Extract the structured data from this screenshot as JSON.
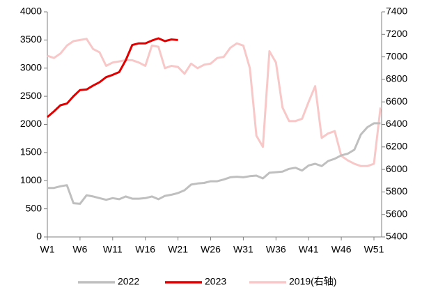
{
  "chart_data": {
    "type": "line",
    "categories": [
      "W1",
      null,
      null,
      null,
      null,
      "W6",
      null,
      null,
      null,
      null,
      "W11",
      null,
      null,
      null,
      null,
      "W16",
      null,
      null,
      null,
      null,
      "W21",
      null,
      null,
      null,
      null,
      "W26",
      null,
      null,
      null,
      null,
      "W31",
      null,
      null,
      null,
      null,
      "W36",
      null,
      null,
      null,
      null,
      "W41",
      null,
      null,
      null,
      null,
      "W46",
      null,
      null,
      null,
      null,
      "W51",
      null
    ],
    "series": [
      {
        "name": "2022",
        "color": "#bfbfbf",
        "values": [
          870,
          870,
          900,
          920,
          600,
          590,
          740,
          720,
          690,
          660,
          690,
          670,
          720,
          680,
          680,
          690,
          720,
          670,
          730,
          750,
          780,
          830,
          930,
          950,
          960,
          990,
          990,
          1020,
          1060,
          1070,
          1060,
          1080,
          1090,
          1040,
          1140,
          1150,
          1160,
          1210,
          1230,
          1180,
          1270,
          1300,
          1260,
          1350,
          1390,
          1450,
          1480,
          1550,
          1820,
          1950,
          2020,
          2020
        ]
      },
      {
        "name": "2023",
        "color": "#e00000",
        "values": [
          2130,
          2230,
          2340,
          2370,
          2500,
          2610,
          2620,
          2690,
          2750,
          2840,
          2880,
          2930,
          3140,
          3410,
          3440,
          3440,
          3490,
          3530,
          3480,
          3510,
          3500,
          null,
          null,
          null,
          null,
          null,
          null,
          null,
          null,
          null,
          null,
          null,
          null,
          null,
          null,
          null,
          null,
          null,
          null,
          null,
          null,
          null,
          null,
          null,
          null,
          null,
          null,
          null,
          null,
          null,
          null,
          null
        ]
      },
      {
        "name": "2019(右轴)",
        "color": "#f8c8c8",
        "axis": "y2",
        "values": [
          7010,
          6990,
          7030,
          7100,
          7140,
          7150,
          7160,
          7070,
          7040,
          6920,
          6950,
          6960,
          6970,
          6970,
          6950,
          6920,
          7100,
          7090,
          6900,
          6920,
          6910,
          6850,
          6940,
          6900,
          6930,
          6940,
          6990,
          7000,
          7080,
          7120,
          7100,
          6900,
          6300,
          6200,
          7050,
          6950,
          6550,
          6430,
          6430,
          6450,
          6600,
          6740,
          6280,
          6320,
          6340,
          6120,
          6080,
          6050,
          6030,
          6030,
          6050,
          6550
        ]
      }
    ],
    "ylim": [
      0,
      4000
    ],
    "yticks": [
      0,
      500,
      1000,
      1500,
      2000,
      2500,
      3000,
      3500,
      4000
    ],
    "y2lim": [
      5400,
      7400
    ],
    "y2ticks": [
      5400,
      5600,
      5800,
      6000,
      6200,
      6400,
      6600,
      6800,
      7000,
      7200,
      7400
    ],
    "grid": false,
    "legend": "bottom"
  }
}
